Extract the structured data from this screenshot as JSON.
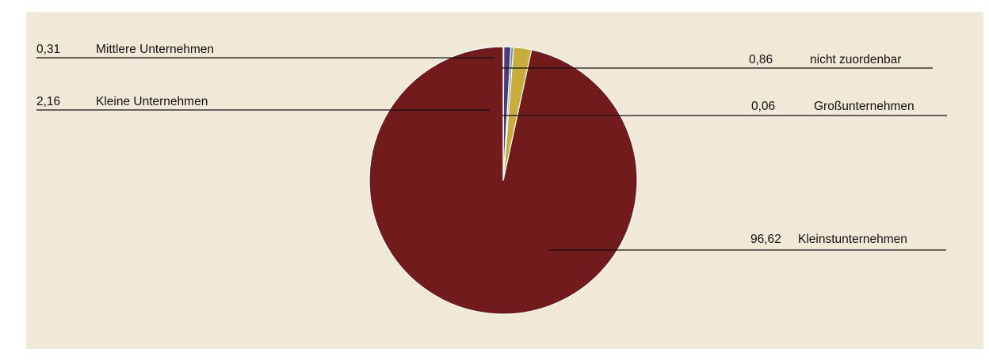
{
  "chart_data": {
    "type": "pie",
    "slices": [
      {
        "name": "Kleinstunternehmen",
        "label": "96,62",
        "value": 96.62,
        "color": "#721b1c"
      },
      {
        "name": "Kleine Unternehmen",
        "label": "2,16",
        "value": 2.16,
        "color": "#c9ad3a"
      },
      {
        "name": "Mittlere Unternehmen",
        "label": "0,31",
        "value": 0.31,
        "color": "#6a90b8"
      },
      {
        "name": "nicht zuordenbar",
        "label": "0,86",
        "value": 0.86,
        "color": "#4b3b78"
      },
      {
        "name": "Großunternehmen",
        "label": "0,06",
        "value": 0.06,
        "color": "#3d6e6a"
      }
    ],
    "start_angle_deg": 0,
    "direction": "counterclockwise"
  }
}
